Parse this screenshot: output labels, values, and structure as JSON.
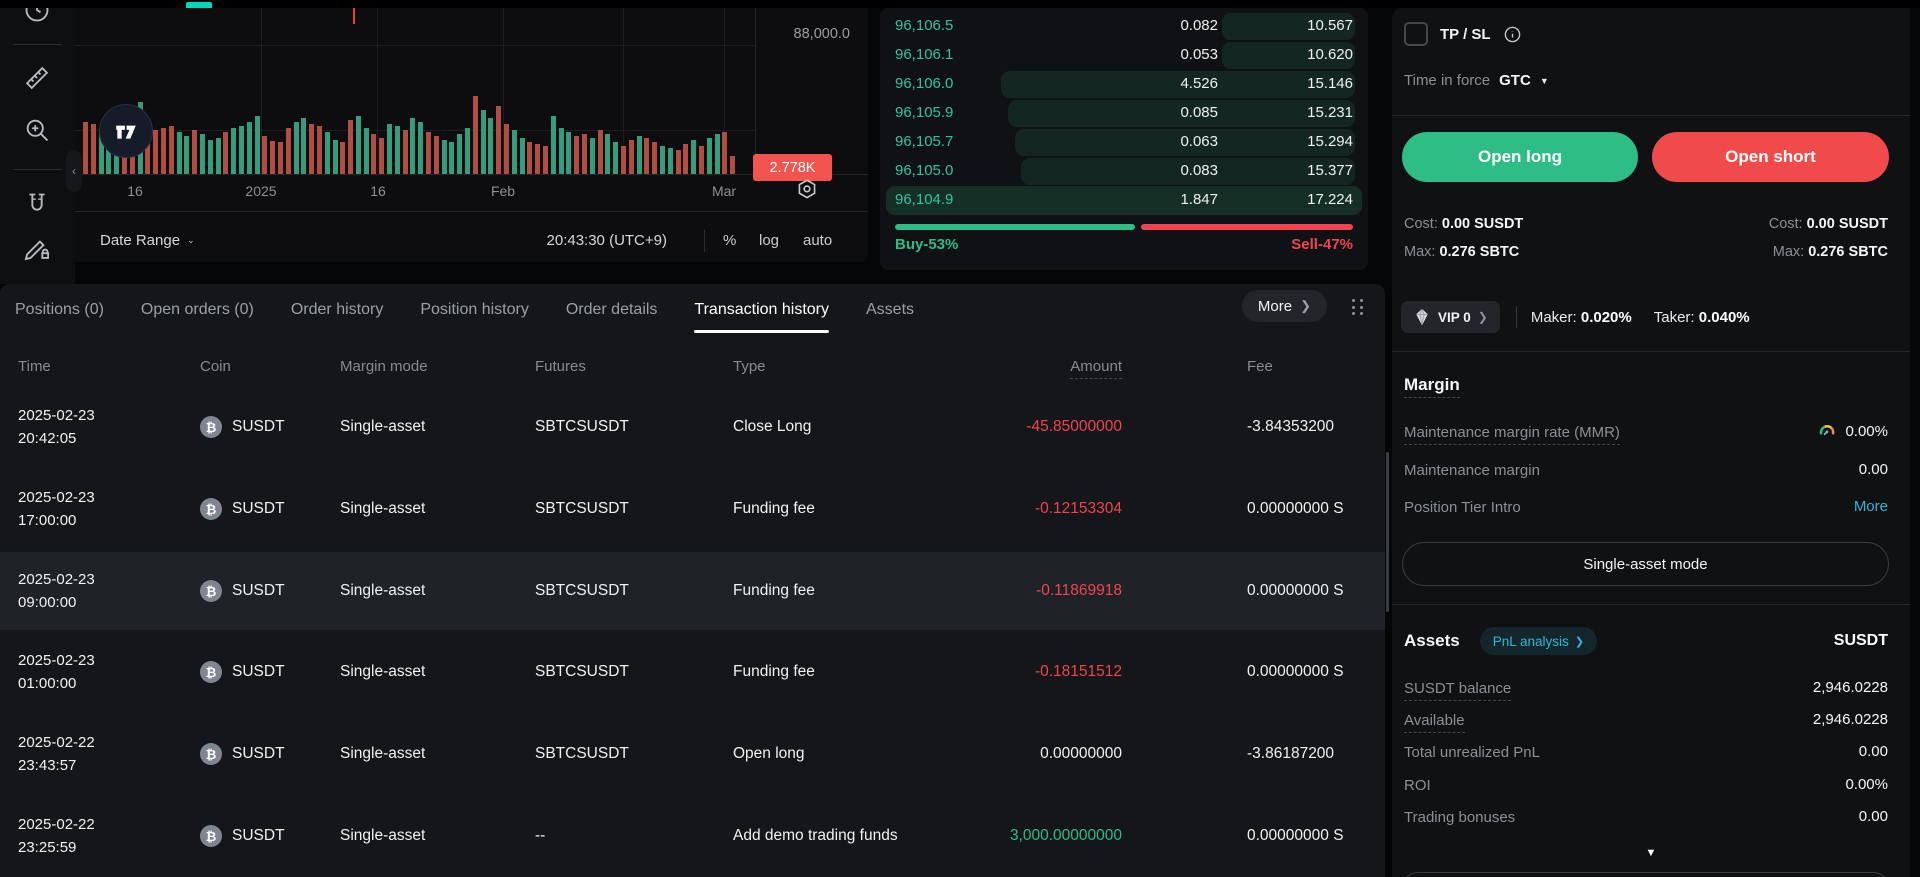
{
  "brand": {
    "accent_color": "#00d6b9"
  },
  "chart": {
    "price_axis_label": "88,000.0",
    "volume_badge": "2.778K",
    "time_axis": [
      "16",
      "2025",
      "16",
      "Feb",
      "Mar"
    ],
    "footer": {
      "date_range": "Date Range",
      "clock": "20:43:30 (UTC+9)",
      "percent": "%",
      "log": "log",
      "auto": "auto"
    },
    "volume_bars": {
      "up_color": "#359d7e",
      "down_color": "#b14e44",
      "heights": [
        52,
        50,
        46,
        44,
        40,
        58,
        62,
        72,
        48,
        44,
        46,
        48,
        42,
        38,
        44,
        40,
        34,
        36,
        42,
        46,
        48,
        52,
        58,
        38,
        33,
        32,
        46,
        52,
        56,
        50,
        48,
        42,
        34,
        32,
        54,
        58,
        46,
        40,
        36,
        50,
        48,
        44,
        56,
        52,
        42,
        38,
        34,
        32,
        40,
        46,
        78,
        64,
        56,
        68,
        50,
        44,
        36,
        32,
        30,
        28,
        58,
        46,
        42,
        38,
        40,
        36,
        44,
        40,
        32,
        28,
        34,
        38,
        36,
        32,
        28,
        26,
        24,
        30,
        34,
        28,
        36,
        40,
        42,
        18
      ],
      "colors": "rrgggrrgrrrrggrgggrggggrrrrggrrggrrggrrggrggrrggggrggrrggrrrgggrrgrggrrgrrggrrgrggrr"
    }
  },
  "orderbook": {
    "rows": [
      {
        "price": "96,106.5",
        "amount": "0.082",
        "total": "10.567",
        "depth": 0.29
      },
      {
        "price": "96,106.1",
        "amount": "0.053",
        "total": "10.620",
        "depth": 0.29
      },
      {
        "price": "96,106.0",
        "amount": "4.526",
        "total": "15.146",
        "depth": 0.77
      },
      {
        "price": "96,105.9",
        "amount": "0.085",
        "total": "15.231",
        "depth": 0.755
      },
      {
        "price": "96,105.7",
        "amount": "0.063",
        "total": "15.294",
        "depth": 0.74
      },
      {
        "price": "96,105.0",
        "amount": "0.083",
        "total": "15.377",
        "depth": 0.725
      },
      {
        "price": "96,104.9",
        "amount": "1.847",
        "total": "17.224",
        "depth": 1.0,
        "highlight": true
      }
    ],
    "buy_percent": 53,
    "buy_label": "Buy-53%",
    "sell_label": "Sell-47%"
  },
  "order_form": {
    "tpsl_label": "TP / SL",
    "time_in_force_label": "Time in force",
    "time_in_force_value": "GTC",
    "open_long": "Open long",
    "open_short": "Open short",
    "long": {
      "cost_label": "Cost:",
      "cost": "0.00 SUSDT",
      "max_label": "Max:",
      "max": "0.276 SBTC"
    },
    "short": {
      "cost_label": "Cost:",
      "cost": "0.00 SUSDT",
      "max_label": "Max:",
      "max": "0.276 SBTC"
    },
    "vip_label": "VIP 0",
    "maker_label": "Maker:",
    "maker_value": "0.020%",
    "taker_label": "Taker:",
    "taker_value": "0.040%"
  },
  "margin_section": {
    "title": "Margin",
    "rows": [
      {
        "label": "Maintenance margin rate (MMR)",
        "value": "0.00%"
      },
      {
        "label": "Maintenance margin",
        "value": "0.00"
      },
      {
        "label": "Position Tier Intro",
        "value": "More"
      }
    ],
    "mode_button": "Single-asset mode"
  },
  "assets_section": {
    "title": "Assets",
    "pnl_link": "PnL analysis",
    "currency": "SUSDT",
    "rows": [
      {
        "label": "SUSDT balance",
        "value": "2,946.0228"
      },
      {
        "label": "Available",
        "value": "2,946.0228"
      },
      {
        "label": "Total unrealized PnL",
        "value": "0.00"
      },
      {
        "label": "ROI",
        "value": "0.00%"
      },
      {
        "label": "Trading bonuses",
        "value": "0.00"
      }
    ]
  },
  "positions_panel": {
    "tabs": [
      {
        "label": "Positions (0)"
      },
      {
        "label": "Open orders (0)"
      },
      {
        "label": "Order history"
      },
      {
        "label": "Position history"
      },
      {
        "label": "Order details"
      },
      {
        "label": "Transaction history",
        "active": true
      },
      {
        "label": "Assets"
      }
    ],
    "more_label": "More",
    "table": {
      "headers": [
        "Time",
        "Coin",
        "Margin mode",
        "Futures",
        "Type",
        "Amount",
        "Fee"
      ],
      "rows": [
        {
          "date": "2025-02-23",
          "time": "20:42:05",
          "coin": "SUSDT",
          "margin_mode": "Single-asset",
          "futures": "SBTCSUSDT",
          "type": "Close Long",
          "amount": "-45.85000000",
          "amount_color": "red",
          "fee": "-3.84353200"
        },
        {
          "date": "2025-02-23",
          "time": "17:00:00",
          "coin": "SUSDT",
          "margin_mode": "Single-asset",
          "futures": "SBTCSUSDT",
          "type": "Funding fee",
          "amount": "-0.12153304",
          "amount_color": "red",
          "fee": "0.00000000 S"
        },
        {
          "date": "2025-02-23",
          "time": "09:00:00",
          "coin": "SUSDT",
          "margin_mode": "Single-asset",
          "futures": "SBTCSUSDT",
          "type": "Funding fee",
          "amount": "-0.11869918",
          "amount_color": "red",
          "fee": "0.00000000 S",
          "highlight": true
        },
        {
          "date": "2025-02-23",
          "time": "01:00:00",
          "coin": "SUSDT",
          "margin_mode": "Single-asset",
          "futures": "SBTCSUSDT",
          "type": "Funding fee",
          "amount": "-0.18151512",
          "amount_color": "red",
          "fee": "0.00000000 S"
        },
        {
          "date": "2025-02-22",
          "time": "23:43:57",
          "coin": "SUSDT",
          "margin_mode": "Single-asset",
          "futures": "SBTCSUSDT",
          "type": "Open long",
          "amount": "0.00000000",
          "amount_color": "white",
          "fee": "-3.86187200"
        },
        {
          "date": "2025-02-22",
          "time": "23:25:59",
          "coin": "SUSDT",
          "margin_mode": "Single-asset",
          "futures": "--",
          "type": "Add demo trading funds",
          "amount": "3,000.00000000",
          "amount_color": "green",
          "fee": "0.00000000 S"
        }
      ]
    }
  },
  "colors": {
    "green": "#2ebd85",
    "red": "#f0454e",
    "cyan": "#2eb6da",
    "badge_red": "#f3544f"
  }
}
